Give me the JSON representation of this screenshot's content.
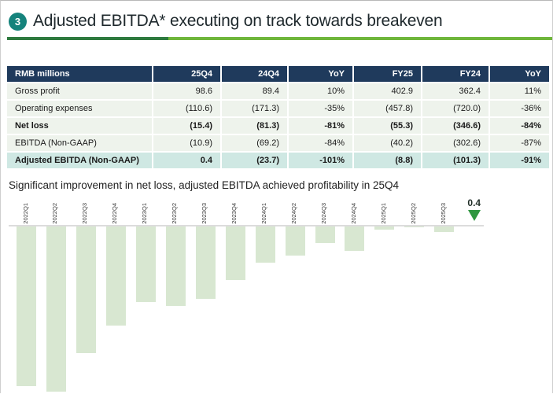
{
  "header": {
    "badge": "3",
    "title": "Adjusted EBITDA* executing on track towards breakeven"
  },
  "table": {
    "columns": [
      "RMB millions",
      "25Q4",
      "24Q4",
      "YoY",
      "FY25",
      "FY24",
      "YoY"
    ],
    "rows": [
      {
        "label": "Gross profit",
        "values": [
          "98.6",
          "89.4",
          "10%",
          "402.9",
          "362.4",
          "11%"
        ],
        "bold": false,
        "highlight": false
      },
      {
        "label": "Operating expenses",
        "values": [
          "(110.6)",
          "(171.3)",
          "-35%",
          "(457.8)",
          "(720.0)",
          "-36%"
        ],
        "bold": false,
        "highlight": false
      },
      {
        "label": "Net loss",
        "values": [
          "(15.4)",
          "(81.3)",
          "-81%",
          "(55.3)",
          "(346.6)",
          "-84%"
        ],
        "bold": true,
        "highlight": false
      },
      {
        "label": "EBITDA (Non-GAAP)",
        "values": [
          "(10.9)",
          "(69.2)",
          "-84%",
          "(40.2)",
          "(302.6)",
          "-87%"
        ],
        "bold": false,
        "highlight": false
      },
      {
        "label": "Adjusted EBITDA (Non-GAAP)",
        "values": [
          "0.4",
          "(23.7)",
          "-101%",
          "(8.8)",
          "(101.3)",
          "-91%"
        ],
        "bold": true,
        "highlight": true
      }
    ]
  },
  "subtitle": "Significant improvement in net loss, adjusted EBITDA achieved profitability in 25Q4",
  "chart_data": {
    "type": "bar",
    "title": "",
    "xlabel": "",
    "ylabel": "",
    "categories": [
      "2022Q1",
      "2022Q2",
      "2022Q3",
      "2022Q4",
      "2023Q1",
      "2023Q2",
      "2023Q3",
      "2023Q4",
      "2024Q1",
      "2024Q2",
      "2024Q3",
      "2024Q4",
      "2025Q1",
      "2025Q2",
      "2025Q3",
      ""
    ],
    "values": [
      -155,
      -160,
      -123,
      -96,
      -73,
      -77,
      -70,
      -52,
      -35,
      -28,
      -16,
      -23.7,
      -2.7,
      -1.0,
      -5.4,
      0.4
    ],
    "annotation": {
      "text": "0.4",
      "value": 0.4,
      "marker": "triangle-down"
    },
    "ylim": [
      -165,
      10
    ],
    "grid": false,
    "legend": "none",
    "bar_color": "#d8e7d1",
    "marker_color": "#2f9640"
  },
  "colors": {
    "header_navy": "#1f3a5c",
    "row_green": "#eef3ec",
    "highlight_teal": "#cfe8e3",
    "badge_teal": "#15837c",
    "divider_dark_green": "#2e7a3f",
    "divider_light_green": "#6fb63b",
    "bar_green": "#d8e7d1",
    "triangle_green": "#2f9640"
  }
}
